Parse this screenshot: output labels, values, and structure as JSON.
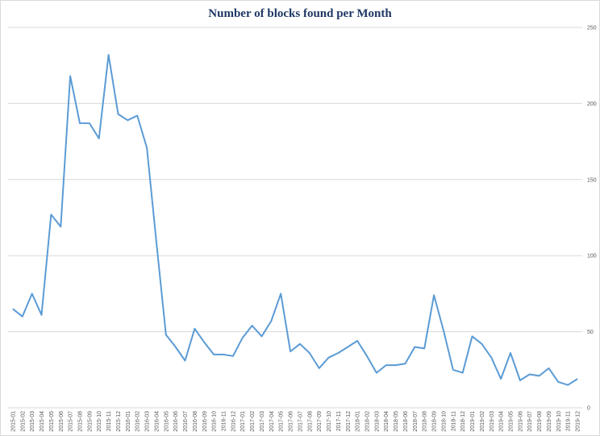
{
  "chart_data": {
    "type": "line",
    "title": "Number of blocks found per Month",
    "categories": [
      "2015-01",
      "2015-02",
      "2015-03",
      "2015-04",
      "2015-05",
      "2015-06",
      "2015-07",
      "2015-08",
      "2015-09",
      "2015-10",
      "2015-11",
      "2015-12",
      "2016-01",
      "2016-02",
      "2016-03",
      "2016-04",
      "2016-05",
      "2016-06",
      "2016-07",
      "2016-08",
      "2016-09",
      "2016-10",
      "2016-11",
      "2016-12",
      "2017-01",
      "2017-02",
      "2017-03",
      "2017-04",
      "2017-05",
      "2017-06",
      "2017-07",
      "2017-08",
      "2017-09",
      "2017-10",
      "2017-11",
      "2017-12",
      "2018-01",
      "2018-02",
      "2018-03",
      "2018-04",
      "2018-05",
      "2018-06",
      "2018-07",
      "2018-08",
      "2018-09",
      "2018-10",
      "2018-11",
      "2018-12",
      "2019-01",
      "2019-02",
      "2019-03",
      "2019-04",
      "2019-05",
      "2019-06",
      "2019-07",
      "2019-08",
      "2019-09",
      "2019-10",
      "2019-11",
      "2019-12"
    ],
    "values": [
      65,
      60,
      75,
      61,
      127,
      119,
      218,
      187,
      187,
      177,
      232,
      193,
      189,
      192,
      171,
      109,
      48,
      40,
      31,
      52,
      43,
      35,
      35,
      34,
      46,
      54,
      47,
      57,
      75,
      37,
      42,
      36,
      26,
      33,
      36,
      40,
      44,
      34,
      23,
      28,
      28,
      29,
      40,
      39,
      74,
      51,
      25,
      23,
      47,
      42,
      33,
      19,
      36,
      18,
      22,
      21,
      26,
      17,
      15,
      19
    ],
    "color": "#5b9bd5",
    "ylim": [
      0,
      250
    ],
    "yticks": [
      0,
      50,
      100,
      150,
      200,
      250
    ],
    "grid": true
  }
}
